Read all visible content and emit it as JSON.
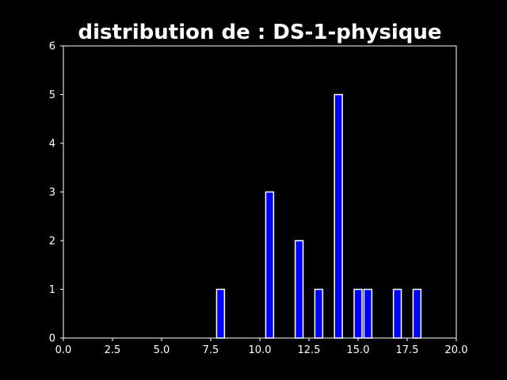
{
  "chart_data": {
    "type": "bar",
    "title": "distribution de : DS-1-physique",
    "xlabel": "",
    "ylabel": "",
    "xlim": [
      0,
      20
    ],
    "ylim": [
      0,
      6
    ],
    "grid": false,
    "bar_width": 0.4,
    "x": [
      8,
      10.5,
      12,
      13,
      14,
      15,
      15.5,
      17,
      18
    ],
    "values": [
      1,
      3,
      2,
      1,
      5,
      1,
      1,
      1,
      1
    ],
    "xticks": [
      0,
      2.5,
      5,
      7.5,
      10,
      12.5,
      15,
      17.5,
      20
    ],
    "xtick_labels": [
      "0.0",
      "2.5",
      "5.0",
      "7.5",
      "10.0",
      "12.5",
      "15.0",
      "17.5",
      "20.0"
    ],
    "yticks": [
      0,
      1,
      2,
      3,
      4,
      5,
      6
    ],
    "ytick_labels": [
      "0",
      "1",
      "2",
      "3",
      "4",
      "5",
      "6"
    ],
    "colors": {
      "background": "#000000",
      "bar_fill": "#0000ff",
      "bar_edge": "#ffffff",
      "axis": "#ffffff",
      "text": "#ffffff"
    }
  }
}
